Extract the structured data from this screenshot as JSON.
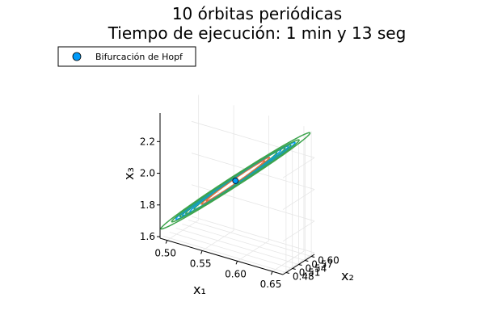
{
  "chart_data": {
    "type": "line3d",
    "title": "10 órbitas periódicas",
    "subtitle": "Tiempo de ejecución: 1 min y 13 seg",
    "xlabel": "x₁",
    "ylabel": "x₂",
    "zlabel": "x₃",
    "x_ticks": [
      0.5,
      0.55,
      0.6,
      0.65
    ],
    "x_tick_labels": [
      "0.50",
      "0.55",
      "0.60",
      "0.65"
    ],
    "y_ticks": [
      0.48,
      0.51,
      0.54,
      0.57,
      0.6
    ],
    "y_tick_labels": [
      "0.48",
      "0.51",
      "0.54",
      "0.57",
      "0.60"
    ],
    "z_ticks": [
      1.6,
      1.8,
      2.0,
      2.2
    ],
    "z_tick_labels": [
      "1.6",
      "1.8",
      "2.0",
      "2.2"
    ],
    "xlim": [
      0.49,
      0.665
    ],
    "ylim": [
      0.465,
      0.615
    ],
    "zlim": [
      1.59,
      2.38
    ],
    "grid": true,
    "legend_position": "top-left",
    "legend": [
      {
        "label": "Bifurcación de Hopf",
        "marker": "circle",
        "color": "#009af9"
      }
    ],
    "point": {
      "name": "Bifurcación de Hopf",
      "x": 0.575,
      "y": 0.54,
      "z": 2.0,
      "color": "#009af9"
    },
    "orbits": [
      {
        "color": "#e26f46",
        "center": [
          0.575,
          0.54,
          2.0
        ],
        "semi": [
          0.035,
          0.022,
          0.155
        ],
        "tilt": -0.1
      },
      {
        "color": "#e26f46",
        "center": [
          0.575,
          0.54,
          2.0
        ],
        "semi": [
          0.041,
          0.025,
          0.18
        ],
        "tilt": -0.1
      },
      {
        "color": "#3da44d",
        "center": [
          0.575,
          0.54,
          2.0
        ],
        "semi": [
          0.05,
          0.03,
          0.22
        ],
        "tilt": -0.1
      },
      {
        "color": "#009af9",
        "center": [
          0.575,
          0.54,
          2.0
        ],
        "semi": [
          0.055,
          0.033,
          0.24
        ],
        "tilt": -0.1
      },
      {
        "color": "#3da44d",
        "center": [
          0.575,
          0.54,
          2.0
        ],
        "semi": [
          0.06,
          0.036,
          0.255
        ],
        "tilt": -0.1
      },
      {
        "color": "#009af9",
        "center": [
          0.575,
          0.54,
          2.0
        ],
        "semi": [
          0.064,
          0.038,
          0.27
        ],
        "tilt": -0.1
      },
      {
        "color": "#3da44d",
        "center": [
          0.575,
          0.54,
          2.0
        ],
        "semi": [
          0.067,
          0.04,
          0.28
        ],
        "tilt": -0.1
      },
      {
        "color": "#009af9",
        "center": [
          0.575,
          0.54,
          2.0
        ],
        "semi": [
          0.072,
          0.043,
          0.3
        ],
        "tilt": -0.1
      },
      {
        "color": "#3da44d",
        "center": [
          0.575,
          0.54,
          2.0
        ],
        "semi": [
          0.077,
          0.046,
          0.32
        ],
        "tilt": -0.1
      },
      {
        "color": "#3da44d",
        "center": [
          0.575,
          0.54,
          2.0
        ],
        "semi": [
          0.09,
          0.054,
          0.375
        ],
        "tilt": -0.1
      }
    ]
  }
}
